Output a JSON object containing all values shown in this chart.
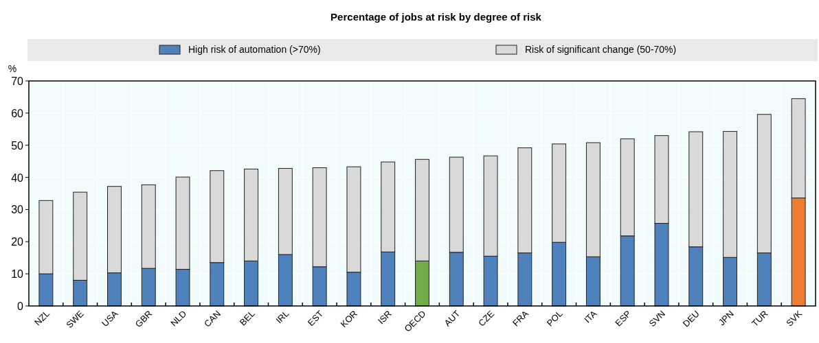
{
  "chart_data": {
    "type": "bar",
    "title": "Percentage of jobs at risk by degree of risk",
    "ylabel": "%",
    "stacked": true,
    "legend": "top",
    "grid": true,
    "categories": [
      "NZL",
      "SWE",
      "USA",
      "GBR",
      "NLD",
      "CAN",
      "BEL",
      "IRL",
      "EST",
      "KOR",
      "ISR",
      "OECD",
      "AUT",
      "CZE",
      "FRA",
      "POL",
      "ITA",
      "ESP",
      "SVN",
      "DEU",
      "JPN",
      "TUR",
      "SVK"
    ],
    "series": [
      {
        "name": "High risk of automation (>70%)",
        "color": "#4f81bd",
        "colors": [
          "#4f81bd",
          "#4f81bd",
          "#4f81bd",
          "#4f81bd",
          "#4f81bd",
          "#4f81bd",
          "#4f81bd",
          "#4f81bd",
          "#4f81bd",
          "#4f81bd",
          "#4f81bd",
          "#70ad47",
          "#4f81bd",
          "#4f81bd",
          "#4f81bd",
          "#4f81bd",
          "#4f81bd",
          "#4f81bd",
          "#4f81bd",
          "#4f81bd",
          "#4f81bd",
          "#4f81bd",
          "#ed7d31"
        ],
        "values": [
          10.0,
          8.0,
          10.3,
          11.7,
          11.4,
          13.5,
          14.0,
          16.0,
          12.2,
          10.5,
          16.8,
          14.0,
          16.7,
          15.5,
          16.5,
          19.8,
          15.3,
          21.8,
          25.7,
          18.4,
          15.1,
          16.5,
          33.6
        ]
      },
      {
        "name": "Risk of significant change (50-70%)",
        "color": "#d9d9d9",
        "values": [
          22.8,
          27.4,
          26.9,
          26.0,
          28.7,
          28.6,
          28.6,
          26.8,
          30.8,
          32.8,
          28.0,
          31.6,
          29.6,
          31.2,
          32.7,
          30.6,
          35.5,
          30.2,
          27.3,
          35.8,
          39.2,
          43.1,
          30.9
        ]
      }
    ],
    "ylim": [
      0,
      70
    ],
    "yticks": [
      0,
      10,
      20,
      30,
      40,
      50,
      60,
      70
    ]
  }
}
